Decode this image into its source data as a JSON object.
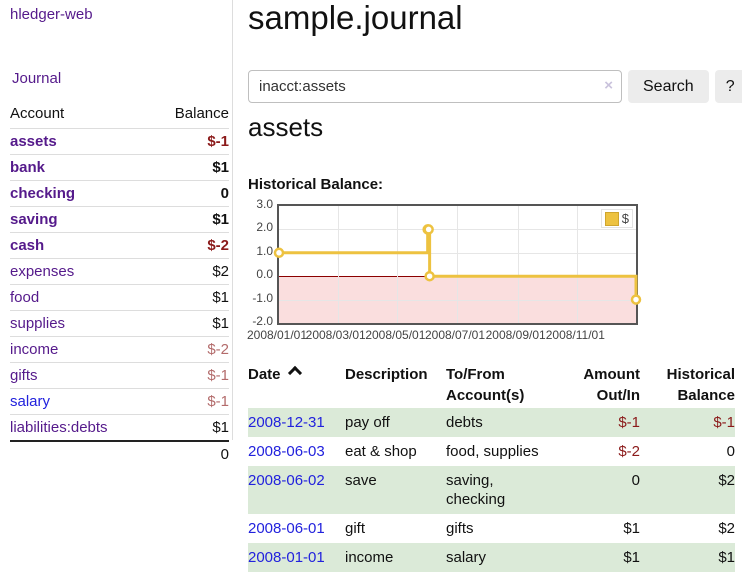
{
  "app_title": "hledger-web",
  "colors": {
    "link_purple": "#551a8b",
    "link_blue": "#2222dd",
    "negative_strong": "#8b1a1a",
    "negative_muted": "#b36b6b",
    "row_green": "#dbead8",
    "series_gold": "#edc240"
  },
  "sidebar": {
    "journal_link": "Journal",
    "account_header": "Account",
    "balance_header": "Balance",
    "accounts": [
      {
        "name": "assets",
        "balance": "$-1",
        "level": 1,
        "bold": true
      },
      {
        "name": "bank",
        "balance": "$1",
        "level": 2,
        "bold": true
      },
      {
        "name": "checking",
        "balance": "0",
        "level": 3,
        "bold": true
      },
      {
        "name": "saving",
        "balance": "$1",
        "level": 3,
        "bold": true
      },
      {
        "name": "cash",
        "balance": "$-2",
        "level": 2,
        "bold": true
      },
      {
        "name": "expenses",
        "balance": "$2",
        "level": 1,
        "bold": false
      },
      {
        "name": "food",
        "balance": "$1",
        "level": 2,
        "bold": false
      },
      {
        "name": "supplies",
        "balance": "$1",
        "level": 2,
        "bold": false
      },
      {
        "name": "income",
        "balance": "$-2",
        "level": 1,
        "bold": false
      },
      {
        "name": "gifts",
        "balance": "$-1",
        "level": 2,
        "bold": false
      },
      {
        "name": "salary",
        "balance": "$-1",
        "level": 2,
        "bold": false,
        "link_color": "blue"
      },
      {
        "name": "liabilities:debts",
        "balance": "$1",
        "level": 1,
        "bold": false
      }
    ],
    "total": "0"
  },
  "main": {
    "title": "sample.journal",
    "search": {
      "value": "inacct:assets",
      "clear_icon": "×",
      "search_button": "Search",
      "help_button": "?"
    },
    "account_title": "assets",
    "chart_title": "Historical Balance:"
  },
  "chart_data": {
    "type": "line",
    "step": true,
    "title": "Historical Balance",
    "series": [
      {
        "name": "$",
        "color": "#edc240",
        "points": [
          [
            "2008-01-01",
            1
          ],
          [
            "2008-06-01",
            2
          ],
          [
            "2008-06-02",
            2
          ],
          [
            "2008-06-03",
            0
          ],
          [
            "2008-12-31",
            -1
          ]
        ]
      }
    ],
    "x_range": [
      "2008-01-01",
      "2008-12-31"
    ],
    "x_tick_labels": [
      "2008/01/01",
      "2008/03/01",
      "2008/05/01",
      "2008/07/01",
      "2008/09/01",
      "2008/11/01"
    ],
    "y_ticks": [
      3.0,
      2.0,
      1.0,
      0.0,
      -1.0,
      -2.0
    ],
    "ylim": [
      -2,
      3
    ],
    "grid": true,
    "legend_position": "top-right",
    "zero_line_color": "#8b0000",
    "negative_zone_color": "#fadede"
  },
  "register": {
    "headers": {
      "date": "Date",
      "sort_icon": "chevron-up",
      "description": "Description",
      "account_lines": [
        "To/From",
        "Account(s)"
      ],
      "amount_lines": [
        "Amount",
        "Out/In"
      ],
      "balance_lines": [
        "Historical",
        "Balance"
      ]
    },
    "rows": [
      {
        "date": "2008-12-31",
        "description": "pay off",
        "accounts": [
          "debts"
        ],
        "amount": "$-1",
        "balance": "$-1"
      },
      {
        "date": "2008-06-03",
        "description": "eat & shop",
        "accounts": [
          "food, supplies"
        ],
        "amount": "$-2",
        "balance": "0"
      },
      {
        "date": "2008-06-02",
        "description": "save",
        "accounts": [
          "saving,",
          "checking"
        ],
        "amount": "0",
        "balance": "$2"
      },
      {
        "date": "2008-06-01",
        "description": "gift",
        "accounts": [
          "gifts"
        ],
        "amount": "$1",
        "balance": "$2"
      },
      {
        "date": "2008-01-01",
        "description": "income",
        "accounts": [
          "salary"
        ],
        "amount": "$1",
        "balance": "$1"
      }
    ]
  }
}
